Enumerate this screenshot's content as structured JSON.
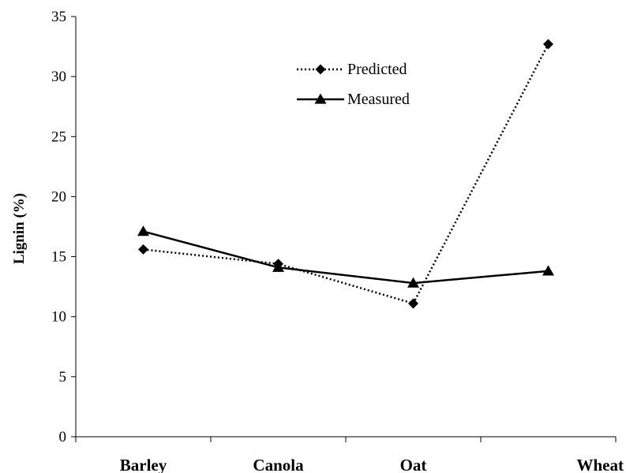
{
  "chart_data": {
    "type": "line",
    "categories": [
      "Barley",
      "Canola",
      "Oat",
      "Wheat"
    ],
    "series": [
      {
        "name": "Predicted",
        "values": [
          15.6,
          14.4,
          11.1,
          32.7
        ],
        "line_style": "dotted",
        "marker": "diamond",
        "color": "#000000"
      },
      {
        "name": "Measured",
        "values": [
          17.1,
          14.1,
          12.8,
          13.8
        ],
        "line_style": "solid",
        "marker": "triangle",
        "color": "#000000"
      }
    ],
    "ylabel": "Lignin (%)",
    "xlabel": "",
    "ylim": [
      0,
      35
    ],
    "yticks": [
      "0",
      "5",
      "10",
      "15",
      "20",
      "25",
      "30",
      "35"
    ],
    "grid": false,
    "legend_position": "top-center"
  }
}
